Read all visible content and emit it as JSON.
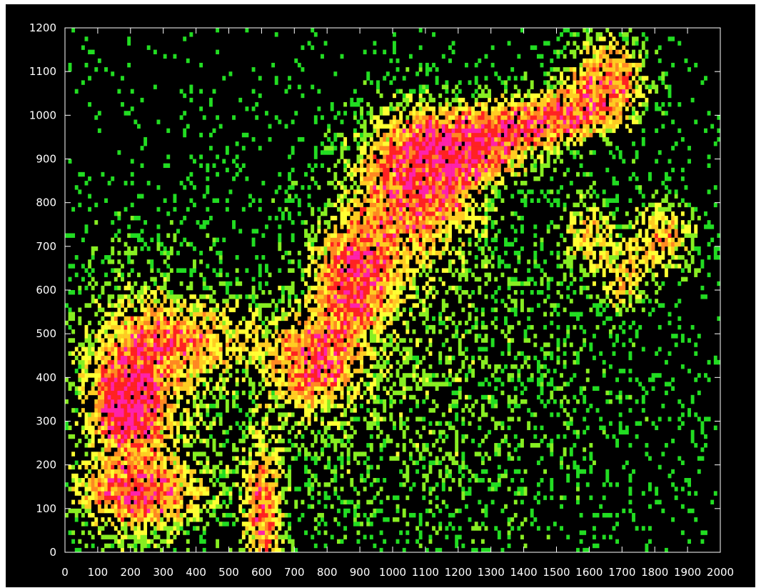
{
  "chart_data": {
    "type": "heatmap",
    "title": "",
    "xlabel": "",
    "ylabel": "",
    "xlim": [
      0,
      2000
    ],
    "ylim": [
      0,
      1200
    ],
    "x_ticks": [
      0,
      100,
      200,
      300,
      400,
      500,
      600,
      700,
      800,
      900,
      1000,
      1100,
      1200,
      1300,
      1400,
      1500,
      1600,
      1700,
      1800,
      1900,
      2000
    ],
    "y_ticks": [
      0,
      100,
      200,
      300,
      400,
      500,
      600,
      700,
      800,
      900,
      1000,
      1100,
      1200
    ],
    "color_scale": [
      "#22dd22",
      "#88ee22",
      "#ffff33",
      "#ffcc22",
      "#ff8822",
      "#ff2222",
      "#ff22aa"
    ],
    "background": "#000000",
    "grid": false,
    "density_features": [
      {
        "label": "cluster",
        "x": 190,
        "y": 340,
        "sx": 60,
        "sy": 55,
        "level": 0.95
      },
      {
        "label": "left band",
        "x": 200,
        "y": 300,
        "sx": 130,
        "sy": 220,
        "level": 0.55
      },
      {
        "label": "lower-left band",
        "x": 240,
        "y": 130,
        "sx": 130,
        "sy": 45,
        "level": 0.6
      },
      {
        "label": "arc",
        "x": 370,
        "y": 480,
        "sx": 150,
        "sy": 60,
        "level": 0.5
      },
      {
        "label": "column",
        "x": 600,
        "y": 80,
        "sx": 40,
        "sy": 120,
        "level": 0.7
      },
      {
        "label": "diagonal ridge 1",
        "x": 750,
        "y": 430,
        "sx": 80,
        "sy": 70,
        "level": 0.75
      },
      {
        "label": "diagonal ridge 2",
        "x": 880,
        "y": 620,
        "sx": 80,
        "sy": 90,
        "level": 0.85
      },
      {
        "label": "upper mass",
        "x": 1070,
        "y": 840,
        "sx": 130,
        "sy": 110,
        "level": 0.9
      },
      {
        "label": "upper ridge",
        "x": 1250,
        "y": 930,
        "sx": 130,
        "sy": 55,
        "level": 0.85
      },
      {
        "label": "upper-right arm",
        "x": 1480,
        "y": 990,
        "sx": 120,
        "sy": 45,
        "level": 0.75
      },
      {
        "label": "top-right cluster",
        "x": 1650,
        "y": 1080,
        "sx": 90,
        "sy": 70,
        "level": 0.8
      },
      {
        "label": "right blobs",
        "x": 1820,
        "y": 720,
        "sx": 70,
        "sy": 60,
        "level": 0.6
      },
      {
        "label": "mid-right blob",
        "x": 1590,
        "y": 720,
        "sx": 50,
        "sy": 60,
        "level": 0.5
      },
      {
        "label": "right mid blob",
        "x": 1700,
        "y": 620,
        "sx": 50,
        "sy": 50,
        "level": 0.5
      },
      {
        "label": "scatter field",
        "x": 1000,
        "y": 400,
        "sx": 500,
        "sy": 300,
        "level": 0.25
      }
    ]
  }
}
